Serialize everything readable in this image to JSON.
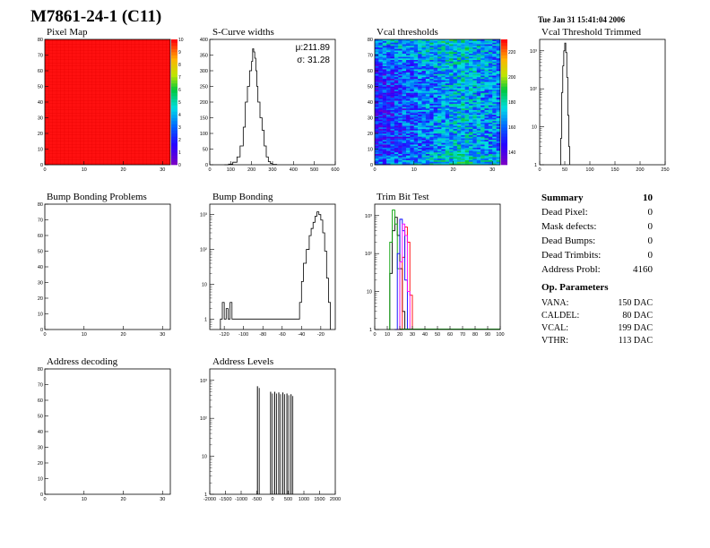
{
  "title": "M7861-24-1 (C11)",
  "timestamp": "Tue Jan 31 15:41:04 2006",
  "chart_data": [
    {
      "name": "pixel-map",
      "type": "heatmap",
      "title": "Pixel Map",
      "xlim": [
        0,
        32
      ],
      "ylim": [
        0,
        80
      ],
      "xticks": [
        0,
        10,
        20,
        30
      ],
      "yticks": [
        0,
        10,
        20,
        30,
        40,
        50,
        60,
        70,
        80
      ],
      "value_uniform": 10,
      "zlim": [
        0,
        10
      ],
      "zticks": [
        0,
        1,
        2,
        3,
        4,
        5,
        6,
        7,
        8,
        9,
        10
      ],
      "colors": {
        "fill": "#ff1010"
      }
    },
    {
      "name": "s-curve-widths",
      "type": "line",
      "title": "S-Curve widths",
      "xlim": [
        0,
        600
      ],
      "ylim": [
        0,
        400
      ],
      "xticks": [
        0,
        100,
        200,
        300,
        400,
        500,
        600
      ],
      "yticks": [
        0,
        50,
        100,
        150,
        200,
        250,
        300,
        350,
        400
      ],
      "stats": [
        "μ:211.89",
        "σ: 31.28"
      ],
      "x": [
        70,
        90,
        110,
        130,
        145,
        160,
        170,
        180,
        190,
        200,
        205,
        210,
        215,
        220,
        225,
        230,
        240,
        250,
        260,
        270,
        280,
        290,
        300,
        320
      ],
      "y": [
        0,
        2,
        8,
        25,
        60,
        120,
        200,
        250,
        300,
        330,
        370,
        360,
        340,
        300,
        250,
        200,
        150,
        110,
        60,
        25,
        10,
        4,
        1,
        0
      ]
    },
    {
      "name": "vcal-thresholds",
      "type": "heatmap",
      "title": "Vcal thresholds",
      "xlim": [
        0,
        32
      ],
      "ylim": [
        0,
        80
      ],
      "xticks": [
        0,
        10,
        20,
        30
      ],
      "yticks": [
        0,
        10,
        20,
        30,
        40,
        50,
        60,
        70,
        80
      ],
      "zlim": [
        130,
        230
      ],
      "zticks": [
        140,
        160,
        180,
        200,
        220
      ]
    },
    {
      "name": "vcal-threshold-trimmed",
      "type": "line",
      "title": "Vcal Threshold Trimmed",
      "yscale": "log",
      "xlim": [
        0,
        250
      ],
      "ylim": [
        1,
        2000
      ],
      "xticks": [
        0,
        50,
        100,
        150,
        200,
        250
      ],
      "yticks": [
        "1",
        "10",
        "10²",
        "10³"
      ],
      "x": [
        40,
        42,
        44,
        46,
        48,
        50,
        52,
        54,
        56,
        58,
        60
      ],
      "y": [
        1,
        5,
        80,
        400,
        1000,
        1600,
        900,
        200,
        20,
        3,
        1
      ]
    },
    {
      "name": "bump-bonding-problems",
      "type": "heatmap",
      "title": "Bump Bonding Problems",
      "xlim": [
        0,
        32
      ],
      "ylim": [
        0,
        80
      ],
      "xticks": [
        0,
        10,
        20,
        30
      ],
      "yticks": [
        0,
        10,
        20,
        30,
        40,
        50,
        60,
        70,
        80
      ]
    },
    {
      "name": "bump-bonding",
      "type": "line",
      "title": "Bump Bonding",
      "yscale": "log",
      "xlim": [
        -135,
        -5
      ],
      "ylim": [
        0.5,
        2000
      ],
      "xticks": [
        -120,
        -100,
        -80,
        -60,
        -40,
        -20
      ],
      "yticks": [
        "1",
        "10",
        "10²",
        "10³"
      ],
      "x": [
        -124,
        -122,
        -120,
        -118,
        -116,
        -114,
        -112,
        -45,
        -42,
        -40,
        -38,
        -35,
        -32,
        -30,
        -28,
        -26,
        -24,
        -22,
        -20,
        -18,
        -16,
        -14,
        -12,
        -10
      ],
      "y": [
        1,
        3,
        1,
        2,
        1,
        3,
        1,
        1,
        3,
        12,
        40,
        100,
        250,
        400,
        600,
        900,
        1200,
        1000,
        700,
        300,
        90,
        15,
        3,
        1
      ]
    },
    {
      "name": "trim-bit-test",
      "type": "line",
      "title": "Trim Bit Test",
      "yscale": "log",
      "xlim": [
        0,
        100
      ],
      "ylim": [
        1,
        2000
      ],
      "xticks": [
        0,
        10,
        20,
        30,
        40,
        50,
        60,
        70,
        80,
        90,
        100
      ],
      "yticks": [
        "1",
        "10",
        "10²",
        "10³"
      ],
      "series": [
        {
          "color": "#000000",
          "x": [
            10,
            12,
            14,
            16,
            18,
            20,
            22,
            24
          ],
          "y": [
            1,
            30,
            400,
            900,
            300,
            40,
            3,
            1
          ]
        },
        {
          "color": "#00a000",
          "x": [
            10,
            12,
            14,
            16,
            18,
            20
          ],
          "y": [
            1,
            200,
            1400,
            600,
            40,
            1
          ]
        },
        {
          "color": "#ff0000",
          "x": [
            20,
            22,
            24,
            26,
            28,
            30
          ],
          "y": [
            1,
            80,
            500,
            200,
            8,
            1
          ]
        },
        {
          "color": "#0000ff",
          "x": [
            16,
            18,
            20,
            22,
            24,
            26
          ],
          "y": [
            1,
            100,
            800,
            400,
            20,
            1
          ]
        },
        {
          "color": "#ff00ff",
          "x": [
            18,
            20,
            22,
            24,
            26,
            28
          ],
          "y": [
            1,
            60,
            600,
            300,
            10,
            1
          ]
        }
      ]
    },
    {
      "name": "address-decoding",
      "type": "heatmap",
      "title": "Address decoding",
      "xlim": [
        0,
        32
      ],
      "ylim": [
        0,
        80
      ],
      "xticks": [
        0,
        10,
        20,
        30
      ],
      "yticks": [
        0,
        10,
        20,
        30,
        40,
        50,
        60,
        70,
        80
      ]
    },
    {
      "name": "address-levels",
      "type": "line",
      "title": "Address Levels",
      "yscale": "log",
      "xlim": [
        -2000,
        2000
      ],
      "ylim": [
        1,
        2000
      ],
      "xticks": [
        -2000,
        -1500,
        -1000,
        -500,
        0,
        500,
        1000,
        1500,
        2000
      ],
      "yticks": [
        "1",
        "10",
        "10²",
        "10³"
      ],
      "peaks": [
        [
          -480,
          700
        ],
        [
          -60,
          500
        ],
        [
          70,
          500
        ],
        [
          200,
          480
        ],
        [
          330,
          480
        ],
        [
          460,
          450
        ],
        [
          590,
          430
        ]
      ]
    }
  ],
  "summary": {
    "heading": "Summary",
    "count": "10",
    "rows": [
      {
        "label": "Dead Pixel:",
        "value": "0"
      },
      {
        "label": "Mask defects:",
        "value": "0"
      },
      {
        "label": "Dead Bumps:",
        "value": "0"
      },
      {
        "label": "Dead Trimbits:",
        "value": "0"
      },
      {
        "label": "Address Probl:",
        "value": "4160"
      }
    ],
    "op_heading": "Op. Parameters",
    "op_rows": [
      {
        "label": "VANA:",
        "value": "150 DAC"
      },
      {
        "label": "CALDEL:",
        "value": "80 DAC"
      },
      {
        "label": "VCAL:",
        "value": "199 DAC"
      },
      {
        "label": "VTHR:",
        "value": "113 DAC"
      }
    ]
  }
}
